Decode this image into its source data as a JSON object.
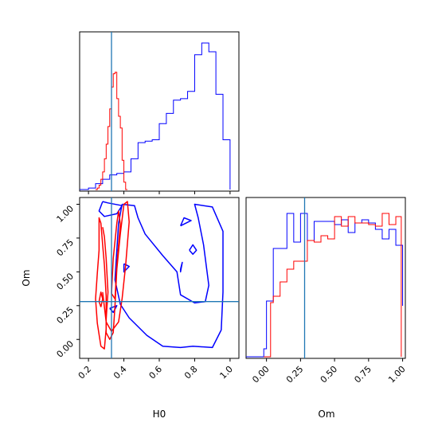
{
  "chart_data": [
    {
      "type": "histogram",
      "panel": "H0 marginal",
      "xlim": [
        0.15,
        1.05
      ],
      "truth": 0.33,
      "series": [
        {
          "color": "#0000ff",
          "edges": [
            0.15,
            0.2,
            0.24,
            0.28,
            0.32,
            0.36,
            0.4,
            0.44,
            0.48,
            0.52,
            0.56,
            0.6,
            0.64,
            0.68,
            0.72,
            0.76,
            0.8,
            0.84,
            0.88,
            0.92,
            0.96,
            1.0
          ],
          "values": [
            0.0,
            0.01,
            0.04,
            0.07,
            0.1,
            0.11,
            0.12,
            0.21,
            0.32,
            0.33,
            0.34,
            0.45,
            0.52,
            0.61,
            0.62,
            0.67,
            0.92,
            1.0,
            0.94,
            0.65,
            0.34
          ]
        },
        {
          "color": "#ff0000",
          "edges": [
            0.24,
            0.25,
            0.26,
            0.27,
            0.28,
            0.29,
            0.3,
            0.31,
            0.32,
            0.33,
            0.34,
            0.35,
            0.36,
            0.37,
            0.38,
            0.39,
            0.4,
            0.41,
            0.42
          ],
          "values": [
            0.0,
            0.01,
            0.03,
            0.07,
            0.12,
            0.21,
            0.31,
            0.43,
            0.55,
            0.7,
            0.79,
            0.8,
            0.62,
            0.5,
            0.42,
            0.2,
            0.05,
            0.0
          ]
        }
      ]
    },
    {
      "type": "contour",
      "panel": "H0 vs Om joint",
      "xlabel": "H0",
      "ylabel": "Om",
      "xlim": [
        0.15,
        1.05
      ],
      "ylim": [
        -0.14,
        1.05
      ],
      "xticks": [
        "0.2",
        "0.4",
        "0.6",
        "0.8",
        "1.0"
      ],
      "yticks": [
        "0.00",
        "0.25",
        "0.50",
        "0.75",
        "1.00"
      ],
      "truth": {
        "x": 0.33,
        "y": 0.28
      },
      "blue_contours": [
        [
          [
            0.39,
            1.0
          ],
          [
            0.46,
            0.99
          ],
          [
            0.48,
            0.9
          ],
          [
            0.52,
            0.78
          ],
          [
            0.62,
            0.62
          ],
          [
            0.7,
            0.5
          ],
          [
            0.72,
            0.33
          ],
          [
            0.8,
            0.27
          ],
          [
            0.86,
            0.28
          ],
          [
            0.88,
            0.4
          ],
          [
            0.85,
            0.7
          ],
          [
            0.82,
            0.9
          ],
          [
            0.8,
            1.0
          ],
          [
            0.9,
            0.98
          ],
          [
            0.96,
            0.8
          ],
          [
            0.96,
            0.35
          ],
          [
            0.95,
            0.07
          ],
          [
            0.9,
            -0.06
          ],
          [
            0.79,
            -0.05
          ],
          [
            0.72,
            -0.06
          ],
          [
            0.62,
            -0.05
          ],
          [
            0.53,
            0.03
          ],
          [
            0.43,
            0.16
          ],
          [
            0.38,
            0.26
          ],
          [
            0.35,
            0.44
          ],
          [
            0.36,
            0.66
          ],
          [
            0.37,
            0.86
          ],
          [
            0.39,
            1.0
          ]
        ],
        [
          [
            0.28,
            1.02
          ],
          [
            0.26,
            0.95
          ],
          [
            0.29,
            0.91
          ],
          [
            0.36,
            0.93
          ],
          [
            0.39,
            0.99
          ],
          [
            0.31,
            1.01
          ],
          [
            0.28,
            1.02
          ]
        ],
        [
          [
            0.72,
            0.52
          ],
          [
            0.73,
            0.57
          ],
          [
            0.72,
            0.5
          ],
          [
            0.72,
            0.52
          ]
        ],
        [
          [
            0.77,
            0.66
          ],
          [
            0.79,
            0.7
          ],
          [
            0.81,
            0.66
          ],
          [
            0.79,
            0.63
          ],
          [
            0.77,
            0.66
          ]
        ],
        [
          [
            0.72,
            0.84
          ],
          [
            0.78,
            0.88
          ],
          [
            0.74,
            0.9
          ],
          [
            0.72,
            0.84
          ]
        ],
        [
          [
            0.4,
            0.56
          ],
          [
            0.43,
            0.54
          ],
          [
            0.4,
            0.5
          ],
          [
            0.4,
            0.56
          ]
        ],
        [
          [
            0.32,
            0.23
          ],
          [
            0.36,
            0.25
          ],
          [
            0.34,
            0.2
          ],
          [
            0.32,
            0.23
          ]
        ]
      ],
      "red_contours": [
        [
          [
            0.28,
            0.83
          ],
          [
            0.29,
            0.76
          ],
          [
            0.3,
            0.6
          ],
          [
            0.31,
            0.35
          ],
          [
            0.3,
            0.15
          ],
          [
            0.3,
            0.05
          ],
          [
            0.32,
            0.0
          ],
          [
            0.34,
            0.05
          ],
          [
            0.35,
            0.25
          ],
          [
            0.36,
            0.52
          ],
          [
            0.38,
            0.78
          ],
          [
            0.4,
            1.0
          ],
          [
            0.42,
            1.02
          ],
          [
            0.43,
            0.87
          ],
          [
            0.41,
            0.55
          ],
          [
            0.39,
            0.3
          ],
          [
            0.37,
            0.13
          ],
          [
            0.33,
            0.06
          ],
          [
            0.3,
            0.13
          ],
          [
            0.28,
            0.35
          ]
        ],
        [
          [
            0.25,
            0.49
          ],
          [
            0.24,
            0.3
          ],
          [
            0.25,
            0.12
          ],
          [
            0.27,
            -0.05
          ],
          [
            0.29,
            -0.07
          ],
          [
            0.3,
            0.08
          ],
          [
            0.3,
            0.32
          ],
          [
            0.29,
            0.55
          ],
          [
            0.28,
            0.7
          ],
          [
            0.27,
            0.86
          ],
          [
            0.26,
            0.9
          ],
          [
            0.26,
            0.66
          ],
          [
            0.25,
            0.49
          ]
        ],
        [
          [
            0.33,
            0.34
          ],
          [
            0.34,
            0.6
          ],
          [
            0.36,
            0.86
          ],
          [
            0.37,
            0.95
          ],
          [
            0.38,
            0.85
          ],
          [
            0.36,
            0.55
          ],
          [
            0.35,
            0.3
          ],
          [
            0.33,
            0.34
          ]
        ],
        [
          [
            0.27,
            0.24
          ],
          [
            0.28,
            0.3
          ],
          [
            0.27,
            0.35
          ],
          [
            0.26,
            0.28
          ],
          [
            0.27,
            0.24
          ]
        ]
      ]
    },
    {
      "type": "histogram",
      "panel": "Om marginal",
      "xlabel": "Om",
      "xlim": [
        -0.15,
        1.02
      ],
      "xticks": [
        "0.00",
        "0.25",
        "0.50",
        "0.75",
        "1.00"
      ],
      "truth": 0.28,
      "series": [
        {
          "color": "#0000ff",
          "edges": [
            -0.15,
            -0.02,
            0.0,
            0.05,
            0.1,
            0.15,
            0.2,
            0.25,
            0.3,
            0.35,
            0.4,
            0.45,
            0.5,
            0.55,
            0.6,
            0.65,
            0.7,
            0.75,
            0.8,
            0.85,
            0.9,
            0.95,
            1.0
          ],
          "values": [
            0.0,
            0.05,
            0.35,
            0.68,
            0.68,
            0.9,
            0.72,
            0.9,
            0.73,
            0.85,
            0.85,
            0.85,
            0.83,
            0.86,
            0.78,
            0.84,
            0.86,
            0.84,
            0.8,
            0.74,
            0.8,
            0.7,
            0.32
          ]
        },
        {
          "color": "#ff0000",
          "edges": [
            -0.02,
            0.0,
            0.03,
            0.05,
            0.1,
            0.15,
            0.2,
            0.25,
            0.3,
            0.35,
            0.4,
            0.45,
            0.5,
            0.55,
            0.6,
            0.65,
            0.7,
            0.75,
            0.8,
            0.85,
            0.9,
            0.95,
            0.99
          ],
          "values": [
            0.0,
            0.0,
            0.34,
            0.38,
            0.47,
            0.55,
            0.6,
            0.6,
            0.73,
            0.72,
            0.76,
            0.74,
            0.88,
            0.82,
            0.88,
            0.84,
            0.84,
            0.83,
            0.82,
            0.9,
            0.83,
            0.88,
            0.0
          ]
        }
      ]
    }
  ],
  "colors": {
    "blue": "#0000ff",
    "red": "#ff0000",
    "truth": "#1f77b4"
  }
}
